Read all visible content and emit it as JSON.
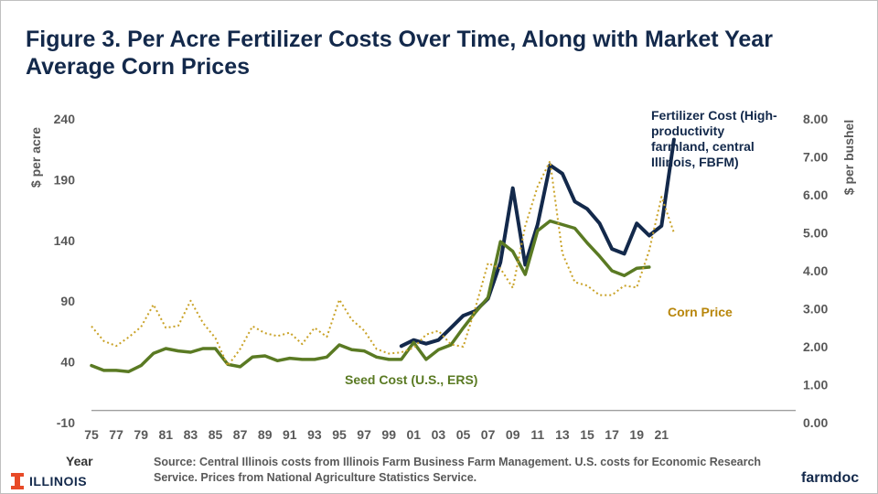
{
  "title": "Figure 3.  Per Acre Fertilizer Costs Over Time, Along with Market Year Average Corn Prices",
  "footer": {
    "year_label": "Year",
    "source": "Source: Central Illinois costs from Illinois Farm Business Farm Management. U.S. costs for Economic Research Service.  Prices from National Agriculture Statistics Service.",
    "logo_text": "ILLINOIS",
    "brand": "farmdoc"
  },
  "colors": {
    "fertilizer": "#13294b",
    "seed": "#5a7a23",
    "corn": "#c9a227",
    "brand_orange": "#e84a27"
  },
  "chart_data": {
    "type": "line",
    "x_tick_labels": [
      "75",
      "77",
      "79",
      "81",
      "83",
      "85",
      "87",
      "89",
      "91",
      "93",
      "95",
      "97",
      "99",
      "01",
      "03",
      "05",
      "07",
      "09",
      "11",
      "13",
      "15",
      "17",
      "19",
      "21"
    ],
    "y_left": {
      "label": "$ per acre",
      "ylim": [
        -10,
        240
      ],
      "ticks": [
        "-10",
        "40",
        "90",
        "140",
        "190",
        "240"
      ]
    },
    "y_right": {
      "label": "$ per bushel",
      "ylim": [
        0,
        8
      ],
      "ticks": [
        "0.00",
        "1.00",
        "2.00",
        "3.00",
        "4.00",
        "5.00",
        "6.00",
        "7.00",
        "8.00"
      ]
    },
    "grid": false,
    "series": [
      {
        "name": "Fertilizer Cost (High-productivity farmland, central Illinois, FBFM)",
        "axis": "left",
        "style": "solid-thick",
        "x": [
          2000,
          2001,
          2002,
          2003,
          2004,
          2005,
          2006,
          2007,
          2008,
          2009,
          2010,
          2011,
          2012,
          2013,
          2014,
          2015,
          2016,
          2017,
          2018,
          2019,
          2020,
          2021,
          2022
        ],
        "y": [
          53,
          58,
          55,
          58,
          68,
          78,
          82,
          92,
          122,
          183,
          120,
          153,
          202,
          195,
          172,
          166,
          154,
          133,
          129,
          154,
          144,
          152,
          223
        ]
      },
      {
        "name": "Seed Cost (U.S., ERS)",
        "axis": "left",
        "style": "solid",
        "x": [
          1975,
          1976,
          1977,
          1978,
          1979,
          1980,
          1981,
          1982,
          1983,
          1984,
          1985,
          1986,
          1987,
          1988,
          1989,
          1990,
          1991,
          1992,
          1993,
          1994,
          1995,
          1996,
          1997,
          1998,
          1999,
          2000,
          2001,
          2002,
          2003,
          2004,
          2005,
          2006,
          2007,
          2008,
          2009,
          2010,
          2011,
          2012,
          2013,
          2014,
          2015,
          2016,
          2017,
          2018,
          2019,
          2020
        ],
        "y": [
          37,
          33,
          33,
          32,
          37,
          47,
          51,
          49,
          48,
          51,
          51,
          38,
          36,
          44,
          45,
          41,
          43,
          42,
          42,
          44,
          54,
          50,
          49,
          44,
          42,
          42,
          56,
          42,
          50,
          54,
          68,
          81,
          93,
          139,
          131,
          112,
          148,
          156,
          153,
          150,
          138,
          127,
          115,
          111,
          117,
          118
        ]
      },
      {
        "name": "Corn Price",
        "axis": "right",
        "style": "dotted",
        "x": [
          1975,
          1976,
          1977,
          1978,
          1979,
          1980,
          1981,
          1982,
          1983,
          1984,
          1985,
          1986,
          1987,
          1988,
          1989,
          1990,
          1991,
          1992,
          1993,
          1994,
          1995,
          1996,
          1997,
          1998,
          1999,
          2000,
          2001,
          2002,
          2003,
          2004,
          2005,
          2006,
          2007,
          2008,
          2009,
          2010,
          2011,
          2012,
          2013,
          2014,
          2015,
          2016,
          2017,
          2018,
          2019,
          2020,
          2021,
          2022
        ],
        "y": [
          2.54,
          2.15,
          2.02,
          2.25,
          2.52,
          3.11,
          2.5,
          2.55,
          3.21,
          2.63,
          2.23,
          1.5,
          1.94,
          2.54,
          2.36,
          2.28,
          2.37,
          2.07,
          2.5,
          2.26,
          3.24,
          2.71,
          2.43,
          1.94,
          1.82,
          1.85,
          1.97,
          2.32,
          2.42,
          2.06,
          2.0,
          3.04,
          4.2,
          4.06,
          3.55,
          5.18,
          6.22,
          6.89,
          4.46,
          3.7,
          3.61,
          3.36,
          3.36,
          3.61,
          3.56,
          4.53,
          5.95,
          5.0
        ]
      }
    ],
    "annotations": [
      "Fertilizer Cost (High-productivity farmland, central Illinois, FBFM)",
      "Corn Price",
      "Seed Cost (U.S., ERS)"
    ]
  }
}
